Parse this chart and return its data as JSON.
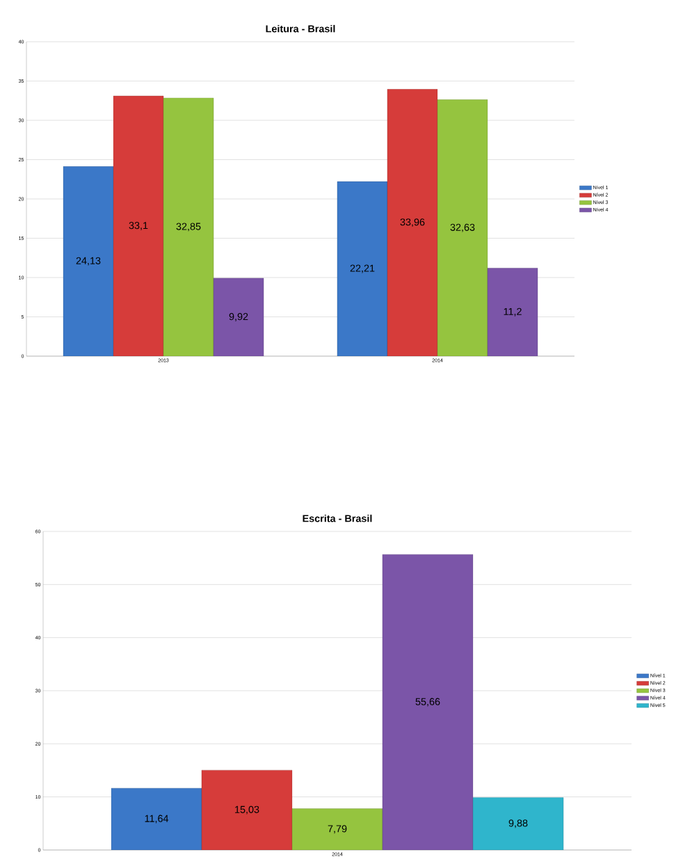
{
  "chart_data": [
    {
      "type": "bar",
      "title": "Leitura - Brasil",
      "categories": [
        "2013",
        "2014"
      ],
      "series": [
        {
          "name": "Nível 1",
          "color": "#3b78c8",
          "values": [
            24.13,
            22.21
          ],
          "value_labels": [
            "24,13",
            "22,21"
          ]
        },
        {
          "name": "Nível 2",
          "color": "#d63c3a",
          "values": [
            33.1,
            33.96
          ],
          "value_labels": [
            "33,1",
            "33,96"
          ]
        },
        {
          "name": "Nível 3",
          "color": "#95c43f",
          "values": [
            32.85,
            32.63
          ],
          "value_labels": [
            "32,85",
            "32,63"
          ]
        },
        {
          "name": "Nível 4",
          "color": "#7b55a8",
          "values": [
            9.92,
            11.2
          ],
          "value_labels": [
            "9,92",
            "11,2"
          ]
        }
      ],
      "ylim": [
        0,
        40
      ],
      "yticks": [
        0,
        5,
        10,
        15,
        20,
        25,
        30,
        35,
        40
      ],
      "grid": "y",
      "legend": "right"
    },
    {
      "type": "bar",
      "title": "Escrita - Brasil",
      "categories": [
        "2014"
      ],
      "series": [
        {
          "name": "Nível 1",
          "color": "#3b78c8",
          "values": [
            11.64
          ],
          "value_labels": [
            "11,64"
          ]
        },
        {
          "name": "Nível 2",
          "color": "#d63c3a",
          "values": [
            15.03
          ],
          "value_labels": [
            "15,03"
          ]
        },
        {
          "name": "Nível 3",
          "color": "#95c43f",
          "values": [
            7.79
          ],
          "value_labels": [
            "7,79"
          ]
        },
        {
          "name": "Nível 4",
          "color": "#7b55a8",
          "values": [
            55.66
          ],
          "value_labels": [
            "55,66"
          ]
        },
        {
          "name": "Nível 5",
          "color": "#2fb5cc",
          "values": [
            9.88
          ],
          "value_labels": [
            "9,88"
          ]
        }
      ],
      "ylim": [
        0,
        60
      ],
      "yticks": [
        0,
        10,
        20,
        30,
        40,
        50,
        60
      ],
      "grid": "y",
      "legend": "right"
    }
  ]
}
